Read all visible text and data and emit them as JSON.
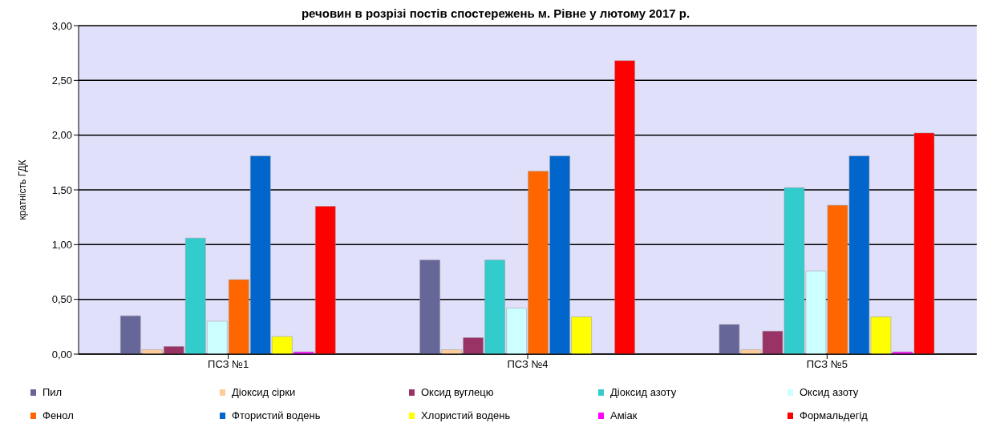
{
  "chart_data": {
    "type": "bar",
    "title": "речовин в розрізі постів спостережень м. Рівне у лютому 2017 р.",
    "ylabel": "кратність ГДК",
    "categories": [
      "ПСЗ №1",
      "ПСЗ №4",
      "ПСЗ №5"
    ],
    "series": [
      {
        "name": "Пил",
        "color": "#666699",
        "values": [
          0.35,
          0.86,
          0.27
        ]
      },
      {
        "name": "Діоксид сірки",
        "color": "#ffcc99",
        "values": [
          0.04,
          0.04,
          0.04
        ]
      },
      {
        "name": "Оксид вуглецю",
        "color": "#993366",
        "values": [
          0.07,
          0.15,
          0.21
        ]
      },
      {
        "name": "Діоксид азоту",
        "color": "#33cccc",
        "values": [
          1.06,
          0.86,
          1.52
        ]
      },
      {
        "name": "Оксид азоту",
        "color": "#ccffff",
        "values": [
          0.3,
          0.42,
          0.76
        ]
      },
      {
        "name": "Фенол",
        "color": "#ff6600",
        "values": [
          0.68,
          1.67,
          1.36
        ]
      },
      {
        "name": "Фтористий водень",
        "color": "#0066cc",
        "values": [
          1.81,
          1.81,
          1.81
        ]
      },
      {
        "name": "Хлористий водень",
        "color": "#ffff00",
        "values": [
          0.16,
          0.34,
          0.34
        ]
      },
      {
        "name": "Аміак",
        "color": "#ff00ff",
        "values": [
          0.02,
          null,
          0.02
        ]
      },
      {
        "name": "Формальдегід",
        "color": "#ff0000",
        "values": [
          1.35,
          2.68,
          2.02
        ]
      }
    ],
    "ylim": [
      0,
      3
    ],
    "yticks": [
      {
        "value": 0,
        "label": "0,00"
      },
      {
        "value": 0.5,
        "label": "0,50"
      },
      {
        "value": 1,
        "label": "1,00"
      },
      {
        "value": 1.5,
        "label": "1,50"
      },
      {
        "value": 2,
        "label": "2,00"
      },
      {
        "value": 2.5,
        "label": "2,50"
      },
      {
        "value": 3,
        "label": "3,00"
      }
    ],
    "grid": "y",
    "legend": "bottom"
  }
}
